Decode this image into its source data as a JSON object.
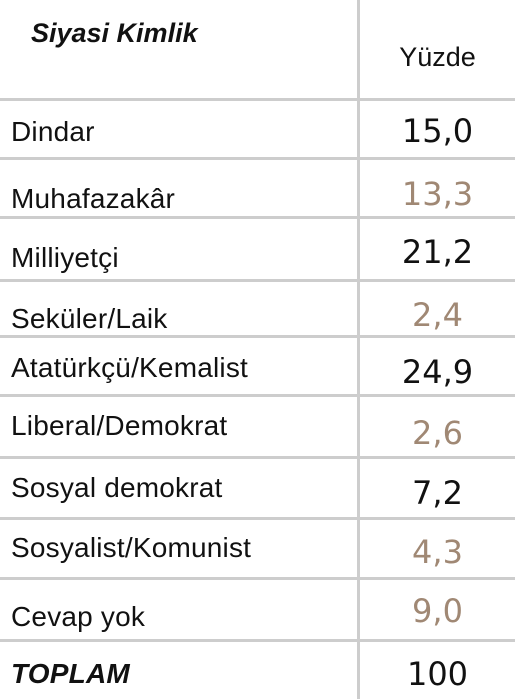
{
  "header": {
    "left": "Siyasi Kimlik",
    "right": "Yüzde"
  },
  "rows": [
    {
      "label": "Dindar",
      "value": "15,0",
      "color": "#111111"
    },
    {
      "label": "Muhafazakâr",
      "value": "13,3",
      "color": "#a08874"
    },
    {
      "label": "Milliyetçi",
      "value": "21,2",
      "color": "#111111"
    },
    {
      "label": "Seküler/Laik",
      "value": "2,4",
      "color": "#a08874"
    },
    {
      "label": "Atatürkçü/Kemalist",
      "value": "24,9",
      "color": "#111111"
    },
    {
      "label": "Liberal/Demokrat",
      "value": "2,6",
      "color": "#a08874"
    },
    {
      "label": "Sosyal demokrat",
      "value": "7,2",
      "color": "#111111"
    },
    {
      "label": "Sosyalist/Komunist",
      "value": "4,3",
      "color": "#a08874"
    },
    {
      "label": "Cevap yok",
      "value": "9,0",
      "color": "#a08874"
    },
    {
      "label": "TOPLAM",
      "value": "100",
      "color": "#111111"
    }
  ]
}
